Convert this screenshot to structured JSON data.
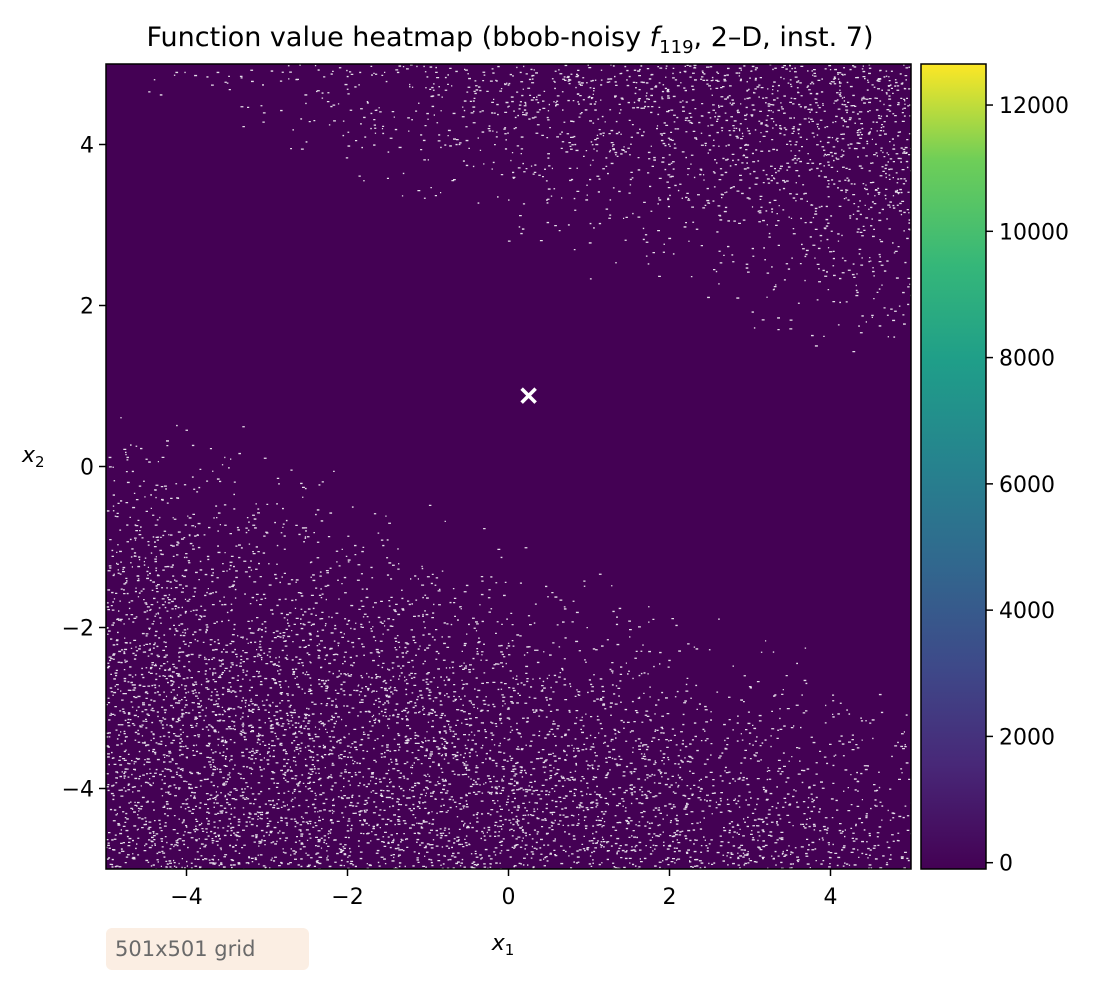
{
  "chart_data": {
    "type": "heatmap",
    "title": {
      "prefix": "Function value heatmap (bbob-noisy ",
      "func_symbol": "f",
      "func_subscript": "119",
      "suffix": ", 2–D, inst. 7)"
    },
    "xlabel": {
      "symbol": "x",
      "subscript": "1"
    },
    "ylabel": {
      "symbol": "x",
      "subscript": "2"
    },
    "xlim": [
      -5,
      5
    ],
    "ylim": [
      -5,
      5
    ],
    "x_ticks": [
      -4,
      -2,
      0,
      2,
      4
    ],
    "y_ticks": [
      -4,
      -2,
      0,
      2,
      4
    ],
    "x_tick_labels": [
      "−4",
      "−2",
      "0",
      "2",
      "4"
    ],
    "y_tick_labels": [
      "−4",
      "−2",
      "0",
      "2",
      "4"
    ],
    "colorbar": {
      "colormap": "viridis",
      "range": [
        -100,
        12650
      ],
      "ticks": [
        0,
        2000,
        4000,
        6000,
        8000,
        10000,
        12000
      ],
      "tick_labels": [
        "0",
        "2000",
        "4000",
        "6000",
        "8000",
        "10000",
        "12000"
      ]
    },
    "optimum_marker": {
      "x": 0.25,
      "y": 0.88,
      "color": "#ffffff",
      "symbol": "x"
    },
    "base_color": "#440154",
    "noise_color": "#e6e0ea",
    "grid": false,
    "annotation": "501x501 grid"
  }
}
